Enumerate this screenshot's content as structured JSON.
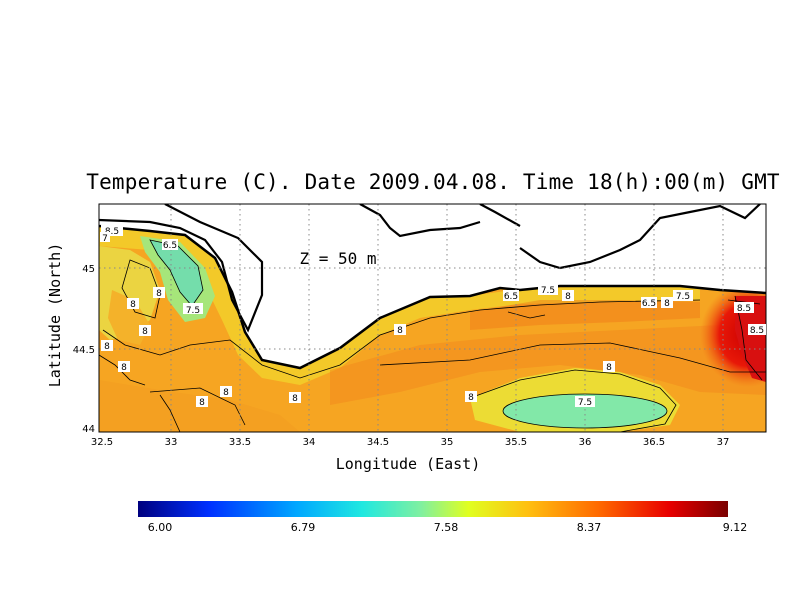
{
  "title": "Temperature (C). Date 2009.04.08. Time 18(h):00(m) GMT",
  "depth_annotation": "Z = 50 m",
  "axes": {
    "xlabel": "Longitude (East)",
    "ylabel": "Latitude (North)",
    "x_ticks": [
      "32.5",
      "33",
      "33.5",
      "34",
      "34.5",
      "35",
      "35.5",
      "36",
      "36.5",
      "37"
    ],
    "y_ticks": [
      "44",
      "44.5",
      "45"
    ],
    "xlim": [
      32.5,
      37.3
    ],
    "ylim": [
      43.98,
      45.38
    ],
    "grid": true
  },
  "colorbar": {
    "labels": [
      "6.00",
      "6.79",
      "7.58",
      "8.37",
      "9.12"
    ],
    "min": 6.0,
    "max": 9.12
  },
  "contour_labels": [
    "7.5",
    "8",
    "8.5",
    "6.5",
    "7"
  ],
  "colors": {
    "land": "#ffffff",
    "coast": "#000000",
    "warm": "#f5a020",
    "hot": "#e21a10",
    "cool": "#7ee8a0",
    "cold": "#3ec0c8"
  },
  "chart_data": {
    "type": "heatmap",
    "variable": "Temperature (C)",
    "date": "2009.04.08",
    "time": "18(h):00(m) GMT",
    "depth": "Z = 50 m",
    "contour_levels": [
      6.5,
      7,
      7.5,
      8,
      8.5
    ],
    "value_range": [
      6.0,
      9.12
    ]
  }
}
